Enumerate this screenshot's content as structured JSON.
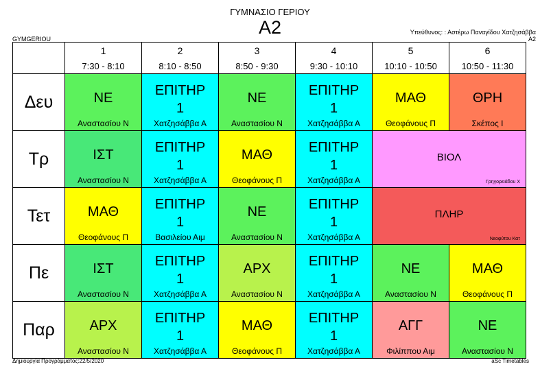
{
  "header": {
    "school": "ΓΥΜΝΑΣΙΟ ΓΕΡΙΟΥ",
    "class_name": "Α2",
    "responsible": "Υπεύθυνος: : Αστέρω Παναγίδου Χατζησάββα",
    "responsible_class": "Α2",
    "school_code": "GYMGERIOU"
  },
  "periods": [
    {
      "num": "1",
      "time": "7:30 - 8:10"
    },
    {
      "num": "2",
      "time": "8:10 - 8:50"
    },
    {
      "num": "3",
      "time": "8:50 - 9:30"
    },
    {
      "num": "4",
      "time": "9:30 - 10:10"
    },
    {
      "num": "5",
      "time": "10:10 - 10:50"
    },
    {
      "num": "6",
      "time": "10:50 - 11:30"
    }
  ],
  "days": [
    "Δευ",
    "Τρ",
    "Τετ",
    "Πε",
    "Παρ"
  ],
  "colors": {
    "green": "#5cf25c",
    "green2": "#48e878",
    "cyan": "#00ffff",
    "yellow": "#ffff00",
    "orange": "#ff7a57",
    "lime": "#b8f24c",
    "pink": "#ff99ff",
    "red": "#f45a5a",
    "salmon": "#ff9a9a"
  },
  "schedule": {
    "mon": [
      {
        "subject": "ΝΕ",
        "teacher": "Αναστασίου Ν"
      },
      {
        "subject": "ΕΠΙΤΗΡ",
        "subject2": "1",
        "teacher": "Χατζησάββα Α"
      },
      {
        "subject": "ΝΕ",
        "teacher": "Αναστασίου Ν"
      },
      {
        "subject": "ΕΠΙΤΗΡ",
        "subject2": "1",
        "teacher": "Χατζησάββα Α"
      },
      {
        "subject": "ΜΑΘ",
        "teacher": "Θεοφάνους Π"
      },
      {
        "subject": "ΘΡΗ",
        "teacher": "Σκέπος Ι"
      }
    ],
    "tue": [
      {
        "subject": "ΙΣΤ",
        "teacher": "Αναστασίου Ν"
      },
      {
        "subject": "ΕΠΙΤΗΡ",
        "subject2": "1",
        "teacher": "Χατζησάββα Α"
      },
      {
        "subject": "ΜΑΘ",
        "teacher": "Θεοφάνους Π"
      },
      {
        "subject": "ΕΠΙΤΗΡ",
        "subject2": "1",
        "teacher": "Χατζησάββα Α"
      },
      {
        "subject": "ΒΙΟΛ",
        "teacher": "Γρηγορειάδου Χ"
      }
    ],
    "wed": [
      {
        "subject": "ΜΑΘ",
        "teacher": "Θεοφάνους Π"
      },
      {
        "subject": "ΕΠΙΤΗΡ",
        "subject2": "1",
        "teacher": "Βασιλείου Αιμ"
      },
      {
        "subject": "ΝΕ",
        "teacher": "Αναστασίου Ν"
      },
      {
        "subject": "ΕΠΙΤΗΡ",
        "subject2": "1",
        "teacher": "Χατζησάββα Α"
      },
      {
        "subject": "ΠΛΗΡ",
        "teacher": "Νεοφύτου Κατ"
      }
    ],
    "thu": [
      {
        "subject": "ΙΣΤ",
        "teacher": "Αναστασίου Ν"
      },
      {
        "subject": "ΕΠΙΤΗΡ",
        "subject2": "1",
        "teacher": "Χατζησάββα Α"
      },
      {
        "subject": "ΑΡΧ",
        "teacher": "Αναστασίου Ν"
      },
      {
        "subject": "ΕΠΙΤΗΡ",
        "subject2": "1",
        "teacher": "Χατζησάββα Α"
      },
      {
        "subject": "ΝΕ",
        "teacher": "Αναστασίου Ν"
      },
      {
        "subject": "ΜΑΘ",
        "teacher": "Θεοφάνους Π"
      }
    ],
    "fri": [
      {
        "subject": "ΑΡΧ",
        "teacher": "Αναστασίου Ν"
      },
      {
        "subject": "ΕΠΙΤΗΡ",
        "subject2": "1",
        "teacher": "Χατζησάββα Α"
      },
      {
        "subject": "ΜΑΘ",
        "teacher": "Θεοφάνους Π"
      },
      {
        "subject": "ΕΠΙΤΗΡ",
        "subject2": "1",
        "teacher": "Χατζησάββα Α"
      },
      {
        "subject": "ΑΓΓ",
        "teacher": "Φιλίππου Αιμ"
      },
      {
        "subject": "ΝΕ",
        "teacher": "Αναστασίου Ν"
      }
    ]
  },
  "footer": {
    "created": "Δημιουργία Προγράμματος:22/5/2020",
    "software": "aSc Timetables"
  }
}
